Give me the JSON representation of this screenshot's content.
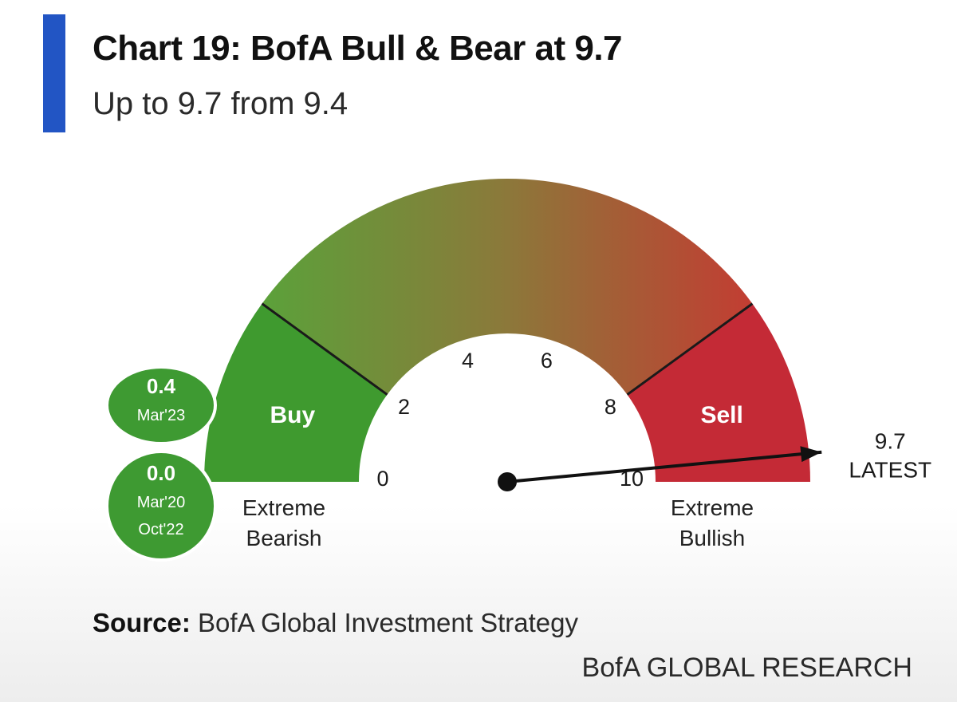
{
  "header": {
    "title": "Chart 19: BofA Bull & Bear at 9.7",
    "subtitle": "Up to 9.7 from 9.4"
  },
  "chart_data": {
    "type": "gauge",
    "title": "Chart 19: BofA Bull & Bear at 9.7",
    "subtitle": "Up to 9.7 from 9.4",
    "min": 0,
    "max": 10,
    "ticks": [
      0,
      2,
      4,
      6,
      8,
      10
    ],
    "tick_labels": [
      "0",
      "2",
      "4",
      "6",
      "8",
      "10"
    ],
    "value": 9.7,
    "previous_value": 9.4,
    "value_label": "9.7",
    "value_caption": "LATEST",
    "zones": [
      {
        "label": "Buy",
        "from": 0,
        "to": 2,
        "color": "#3f9a2f"
      },
      {
        "label": "",
        "from": 2,
        "to": 8,
        "color_start": "#55a63a",
        "color_end": "#c53a32"
      },
      {
        "label": "Sell",
        "from": 8,
        "to": 10,
        "color": "#c42a36"
      }
    ],
    "end_labels": {
      "left": [
        "Extreme",
        "Bearish"
      ],
      "right": [
        "Extreme",
        "Bullish"
      ]
    },
    "historic_lows": [
      {
        "value": "0.4",
        "dates": [
          "Mar'23"
        ]
      },
      {
        "value": "0.0",
        "dates": [
          "Mar'20",
          "Oct'22"
        ]
      }
    ],
    "colors": {
      "low_green": "#3f9a2f",
      "high_red": "#c42a36",
      "needle": "#111111",
      "badge_green": "#3e9a32"
    }
  },
  "footer": {
    "source_label": "Source:",
    "source_text": "BofA Global Investment Strategy",
    "brand": "BofA GLOBAL RESEARCH"
  }
}
